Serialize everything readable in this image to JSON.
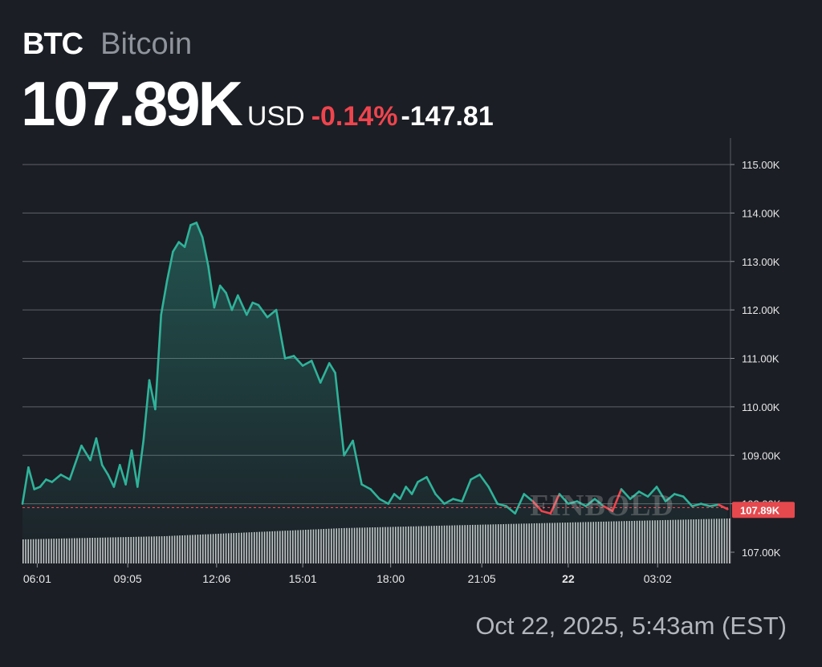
{
  "header": {
    "ticker": "BTC",
    "name": "Bitcoin",
    "price": "107.89K",
    "currency": "USD",
    "change_pct": "-0.14%",
    "change_abs": "-147.81"
  },
  "footer": {
    "date": "Oct 22, 2025, 5:43am (EST)"
  },
  "watermark": "FINBOLD",
  "colors": {
    "background": "#1b1e25",
    "line_up": "#2fb39a",
    "line_down": "#f0444d",
    "grid": "#9a9da3",
    "volume": "#e6e6e6",
    "price_tag": "#e5484d"
  },
  "chart_data": {
    "type": "line",
    "ylim": [
      106.7,
      115.5
    ],
    "y_ticks": [
      107,
      108,
      109,
      110,
      111,
      112,
      113,
      114,
      115
    ],
    "y_tick_labels": [
      "107.00K",
      "108.00K",
      "109.00K",
      "110.00K",
      "111.00K",
      "112.00K",
      "113.00K",
      "114.00K",
      "115.00K"
    ],
    "x_ticks": [
      {
        "label": "06:01",
        "t": 0.5,
        "bold": false
      },
      {
        "label": "09:05",
        "t": 3.57,
        "bold": false
      },
      {
        "label": "12:06",
        "t": 6.58,
        "bold": false
      },
      {
        "label": "15:01",
        "t": 9.5,
        "bold": false
      },
      {
        "label": "18:00",
        "t": 12.48,
        "bold": false
      },
      {
        "label": "21:05",
        "t": 15.57,
        "bold": false
      },
      {
        "label": "22",
        "t": 18.5,
        "bold": true
      },
      {
        "label": "03:02",
        "t": 21.53,
        "bold": false
      }
    ],
    "t_range": [
      0,
      24
    ],
    "reference_price": 107.92,
    "last_price_label": "107.89K",
    "series": [
      {
        "x": [
          0.0,
          0.2,
          0.4,
          0.6,
          0.8,
          1.0,
          1.3,
          1.6,
          2.0,
          2.3,
          2.5,
          2.7,
          2.9,
          3.1,
          3.3,
          3.5,
          3.7,
          3.9,
          4.1,
          4.3,
          4.5,
          4.7,
          4.9,
          5.1,
          5.3,
          5.5,
          5.7,
          5.9,
          6.1,
          6.3,
          6.5,
          6.7,
          6.9,
          7.1,
          7.3,
          7.6,
          7.8,
          8.0,
          8.3,
          8.6,
          8.9,
          9.2,
          9.5,
          9.8,
          10.1,
          10.4,
          10.6,
          10.9,
          11.2,
          11.5,
          11.8,
          12.1,
          12.4,
          12.6,
          12.8,
          13.0,
          13.2,
          13.4,
          13.7,
          14.0,
          14.3,
          14.6,
          14.9,
          15.2,
          15.5,
          15.8,
          16.1,
          16.4,
          16.7,
          17.0,
          17.3,
          17.6,
          17.9,
          18.2,
          18.5,
          18.8,
          19.1,
          19.4,
          19.7,
          20.0,
          20.3,
          20.6,
          20.9,
          21.2,
          21.5,
          21.8,
          22.1,
          22.4,
          22.7,
          23.0,
          23.3,
          23.6,
          23.9
        ],
        "values": [
          108.0,
          108.75,
          108.3,
          108.35,
          108.5,
          108.45,
          108.6,
          108.5,
          109.2,
          108.9,
          109.35,
          108.8,
          108.6,
          108.35,
          108.8,
          108.4,
          109.1,
          108.35,
          109.3,
          110.55,
          109.95,
          111.9,
          112.6,
          113.2,
          113.4,
          113.3,
          113.75,
          113.8,
          113.5,
          112.9,
          112.05,
          112.5,
          112.35,
          112.0,
          112.3,
          111.9,
          112.15,
          112.1,
          111.85,
          112.0,
          111.0,
          111.05,
          110.85,
          110.95,
          110.5,
          110.9,
          110.7,
          109.0,
          109.3,
          108.4,
          108.3,
          108.1,
          108.0,
          108.2,
          108.1,
          108.35,
          108.2,
          108.45,
          108.55,
          108.2,
          108.0,
          108.1,
          108.05,
          108.5,
          108.6,
          108.35,
          108.0,
          107.95,
          107.8,
          108.2,
          108.05,
          107.85,
          107.8,
          108.2,
          108.0,
          108.05,
          107.95,
          108.1,
          107.95,
          107.85,
          108.3,
          108.1,
          108.25,
          108.15,
          108.35,
          108.05,
          108.2,
          108.15,
          107.95,
          108.0,
          107.95,
          107.98,
          107.89
        ]
      }
    ]
  }
}
